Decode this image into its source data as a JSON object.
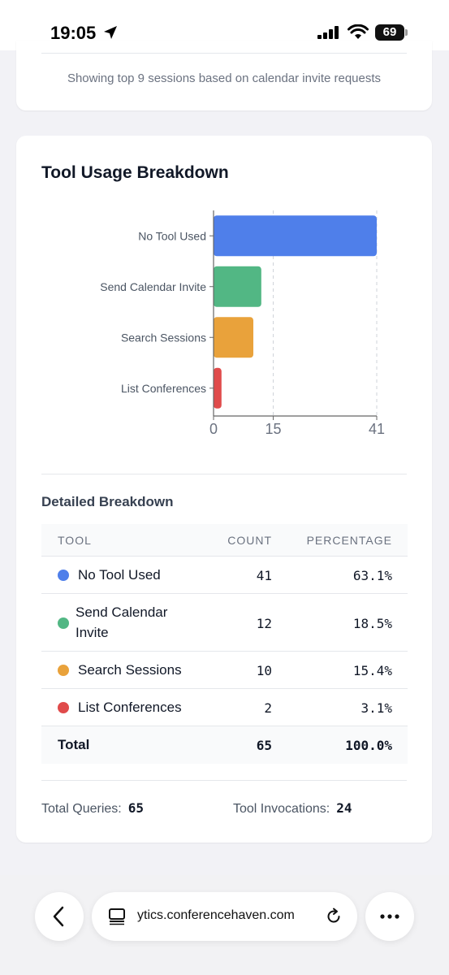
{
  "status_bar": {
    "time": "19:05",
    "battery": "69"
  },
  "top_card": {
    "note": "Showing top 9 sessions based on calendar invite requests"
  },
  "card": {
    "title": "Tool Usage Breakdown"
  },
  "chart_data": {
    "type": "bar",
    "orientation": "horizontal",
    "categories": [
      "No Tool Used",
      "Send Calendar Invite",
      "Search Sessions",
      "List Conferences"
    ],
    "values": [
      41,
      12,
      10,
      2
    ],
    "colors": [
      "#4f7fea",
      "#52b784",
      "#e9a23b",
      "#e04b4b"
    ],
    "x_ticks": [
      "0",
      "15",
      "41"
    ],
    "x_tick_values": [
      0,
      15,
      41
    ],
    "xlim": [
      0,
      41
    ],
    "grid": "vertical dashed"
  },
  "details": {
    "title": "Detailed Breakdown",
    "headers": {
      "tool": "TOOL",
      "count": "COUNT",
      "percentage": "PERCENTAGE"
    },
    "rows": [
      {
        "tool": "No Tool Used",
        "count": "41",
        "percentage": "63.1%",
        "color": "#4f7fea"
      },
      {
        "tool": "Send Calendar",
        "tool_line2": "Invite",
        "count": "12",
        "percentage": "18.5%",
        "color": "#52b784"
      },
      {
        "tool": "Search Sessions",
        "count": "10",
        "percentage": "15.4%",
        "color": "#e9a23b"
      },
      {
        "tool": "List Conferences",
        "count": "2",
        "percentage": "3.1%",
        "color": "#e04b4b"
      }
    ],
    "total": {
      "label": "Total",
      "count": "65",
      "percentage": "100.0%"
    }
  },
  "summary": {
    "total_queries_label": "Total Queries:",
    "total_queries_value": "65",
    "tool_invocations_label": "Tool Invocations:",
    "tool_invocations_value": "24"
  },
  "browser": {
    "url": "ytics.conferencehaven.com"
  },
  "icons": {
    "location": "location-arrow-icon",
    "signal": "cellular-signal-icon",
    "wifi": "wifi-icon",
    "back": "chevron-left-icon",
    "tabs": "tabs-icon",
    "reload": "reload-icon",
    "more": "more-dots-icon"
  }
}
